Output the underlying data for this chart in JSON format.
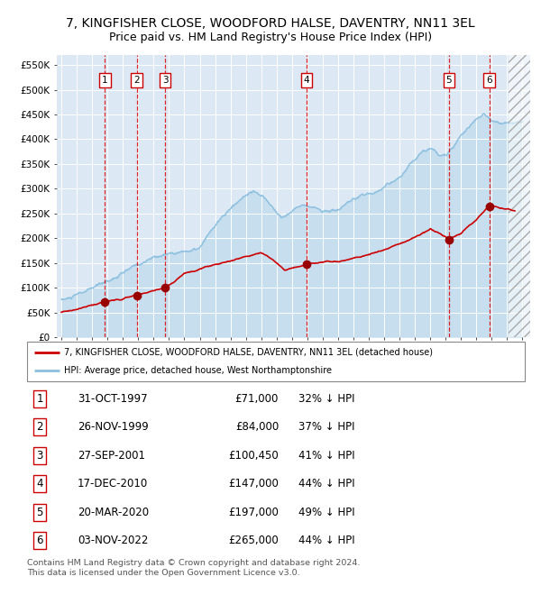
{
  "title": "7, KINGFISHER CLOSE, WOODFORD HALSE, DAVENTRY, NN11 3EL",
  "subtitle": "Price paid vs. HM Land Registry's House Price Index (HPI)",
  "title_fontsize": 10,
  "subtitle_fontsize": 9,
  "background_color": "#dce9f5",
  "hpi_color": "#8bbfdf",
  "price_color": "#cc0000",
  "hpi_linewidth": 1.0,
  "price_linewidth": 1.2,
  "ylim": [
    0,
    570000
  ],
  "xlim_start": 1994.7,
  "xlim_end": 2025.5,
  "yticks": [
    0,
    50000,
    100000,
    150000,
    200000,
    250000,
    300000,
    350000,
    400000,
    450000,
    500000,
    550000
  ],
  "ytick_labels": [
    "£0",
    "£50K",
    "£100K",
    "£150K",
    "£200K",
    "£250K",
    "£300K",
    "£350K",
    "£400K",
    "£450K",
    "£500K",
    "£550K"
  ],
  "sales": [
    {
      "num": 1,
      "date": "31-OCT-1997",
      "year": 1997.83,
      "price": 71000,
      "pct": "32%"
    },
    {
      "num": 2,
      "date": "26-NOV-1999",
      "year": 1999.9,
      "price": 84000,
      "pct": "37%"
    },
    {
      "num": 3,
      "date": "27-SEP-2001",
      "year": 2001.74,
      "price": 100450,
      "pct": "41%"
    },
    {
      "num": 4,
      "date": "17-DEC-2010",
      "year": 2010.96,
      "price": 147000,
      "pct": "44%"
    },
    {
      "num": 5,
      "date": "20-MAR-2020",
      "year": 2020.22,
      "price": 197000,
      "pct": "49%"
    },
    {
      "num": 6,
      "date": "03-NOV-2022",
      "year": 2022.84,
      "price": 265000,
      "pct": "44%"
    }
  ],
  "legend_label_red": "7, KINGFISHER CLOSE, WOODFORD HALSE, DAVENTRY, NN11 3EL (detached house)",
  "legend_label_blue": "HPI: Average price, detached house, West Northamptonshire",
  "footer": "Contains HM Land Registry data © Crown copyright and database right 2024.\nThis data is licensed under the Open Government Licence v3.0.",
  "hatched_region_start": 2024.08,
  "hatched_region_end": 2025.5,
  "hpi_kp_x": [
    1995.0,
    1995.5,
    1997.0,
    1999.0,
    2001.0,
    2002.5,
    2004.0,
    2005.0,
    2006.5,
    2007.5,
    2008.5,
    2009.3,
    2010.0,
    2011.0,
    2012.0,
    2013.0,
    2014.0,
    2015.0,
    2016.0,
    2017.0,
    2018.0,
    2018.5,
    2019.0,
    2019.5,
    2020.0,
    2020.5,
    2021.0,
    2022.0,
    2022.5,
    2023.0,
    2023.5,
    2024.0,
    2025.0
  ],
  "hpi_kp_y": [
    83000,
    85000,
    100000,
    130000,
    158000,
    172000,
    178000,
    220000,
    265000,
    290000,
    265000,
    235000,
    248000,
    268000,
    255000,
    258000,
    268000,
    280000,
    295000,
    318000,
    355000,
    375000,
    382000,
    375000,
    378000,
    395000,
    420000,
    458000,
    470000,
    455000,
    448000,
    450000,
    455000
  ],
  "price_kp_x": [
    1995.0,
    1996.5,
    1997.83,
    1999.9,
    2001.74,
    2003.0,
    2005.0,
    2006.5,
    2008.0,
    2008.8,
    2009.5,
    2010.96,
    2012.0,
    2013.5,
    2015.0,
    2016.5,
    2017.5,
    2018.5,
    2019.0,
    2019.5,
    2020.22,
    2021.0,
    2022.0,
    2022.84,
    2023.5,
    2024.5
  ],
  "price_kp_y": [
    53000,
    62000,
    71000,
    84000,
    100450,
    130000,
    148000,
    158000,
    170000,
    155000,
    135000,
    147000,
    150000,
    157000,
    168000,
    185000,
    198000,
    212000,
    218000,
    210000,
    197000,
    205000,
    235000,
    265000,
    258000,
    248000
  ]
}
